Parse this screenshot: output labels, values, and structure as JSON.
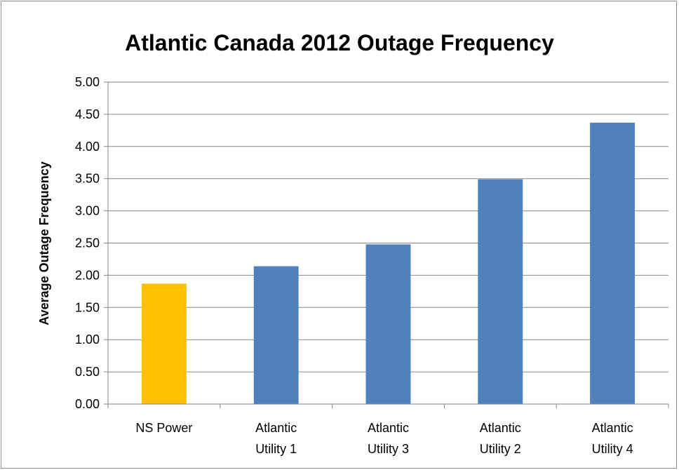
{
  "chart_data": {
    "type": "bar",
    "title": "Atlantic Canada 2012 Outage Frequency",
    "ylabel": "Average Outage Frequency",
    "xlabel": "",
    "categories": [
      [
        "NS Power"
      ],
      [
        "Atlantic",
        "Utility 1"
      ],
      [
        "Atlantic",
        "Utility 3"
      ],
      [
        "Atlantic",
        "Utility 2"
      ],
      [
        "Atlantic",
        "Utility 4"
      ]
    ],
    "values": [
      1.87,
      2.14,
      2.48,
      3.49,
      4.37
    ],
    "bar_colors": [
      "#FFC000",
      "#4F81BD",
      "#4F81BD",
      "#4F81BD",
      "#4F81BD"
    ],
    "ylim": [
      0,
      5
    ],
    "yticks": [
      "0.00",
      "0.50",
      "1.00",
      "1.50",
      "2.00",
      "2.50",
      "3.00",
      "3.50",
      "4.00",
      "4.50",
      "5.00"
    ],
    "grid": true,
    "legend": "none"
  }
}
